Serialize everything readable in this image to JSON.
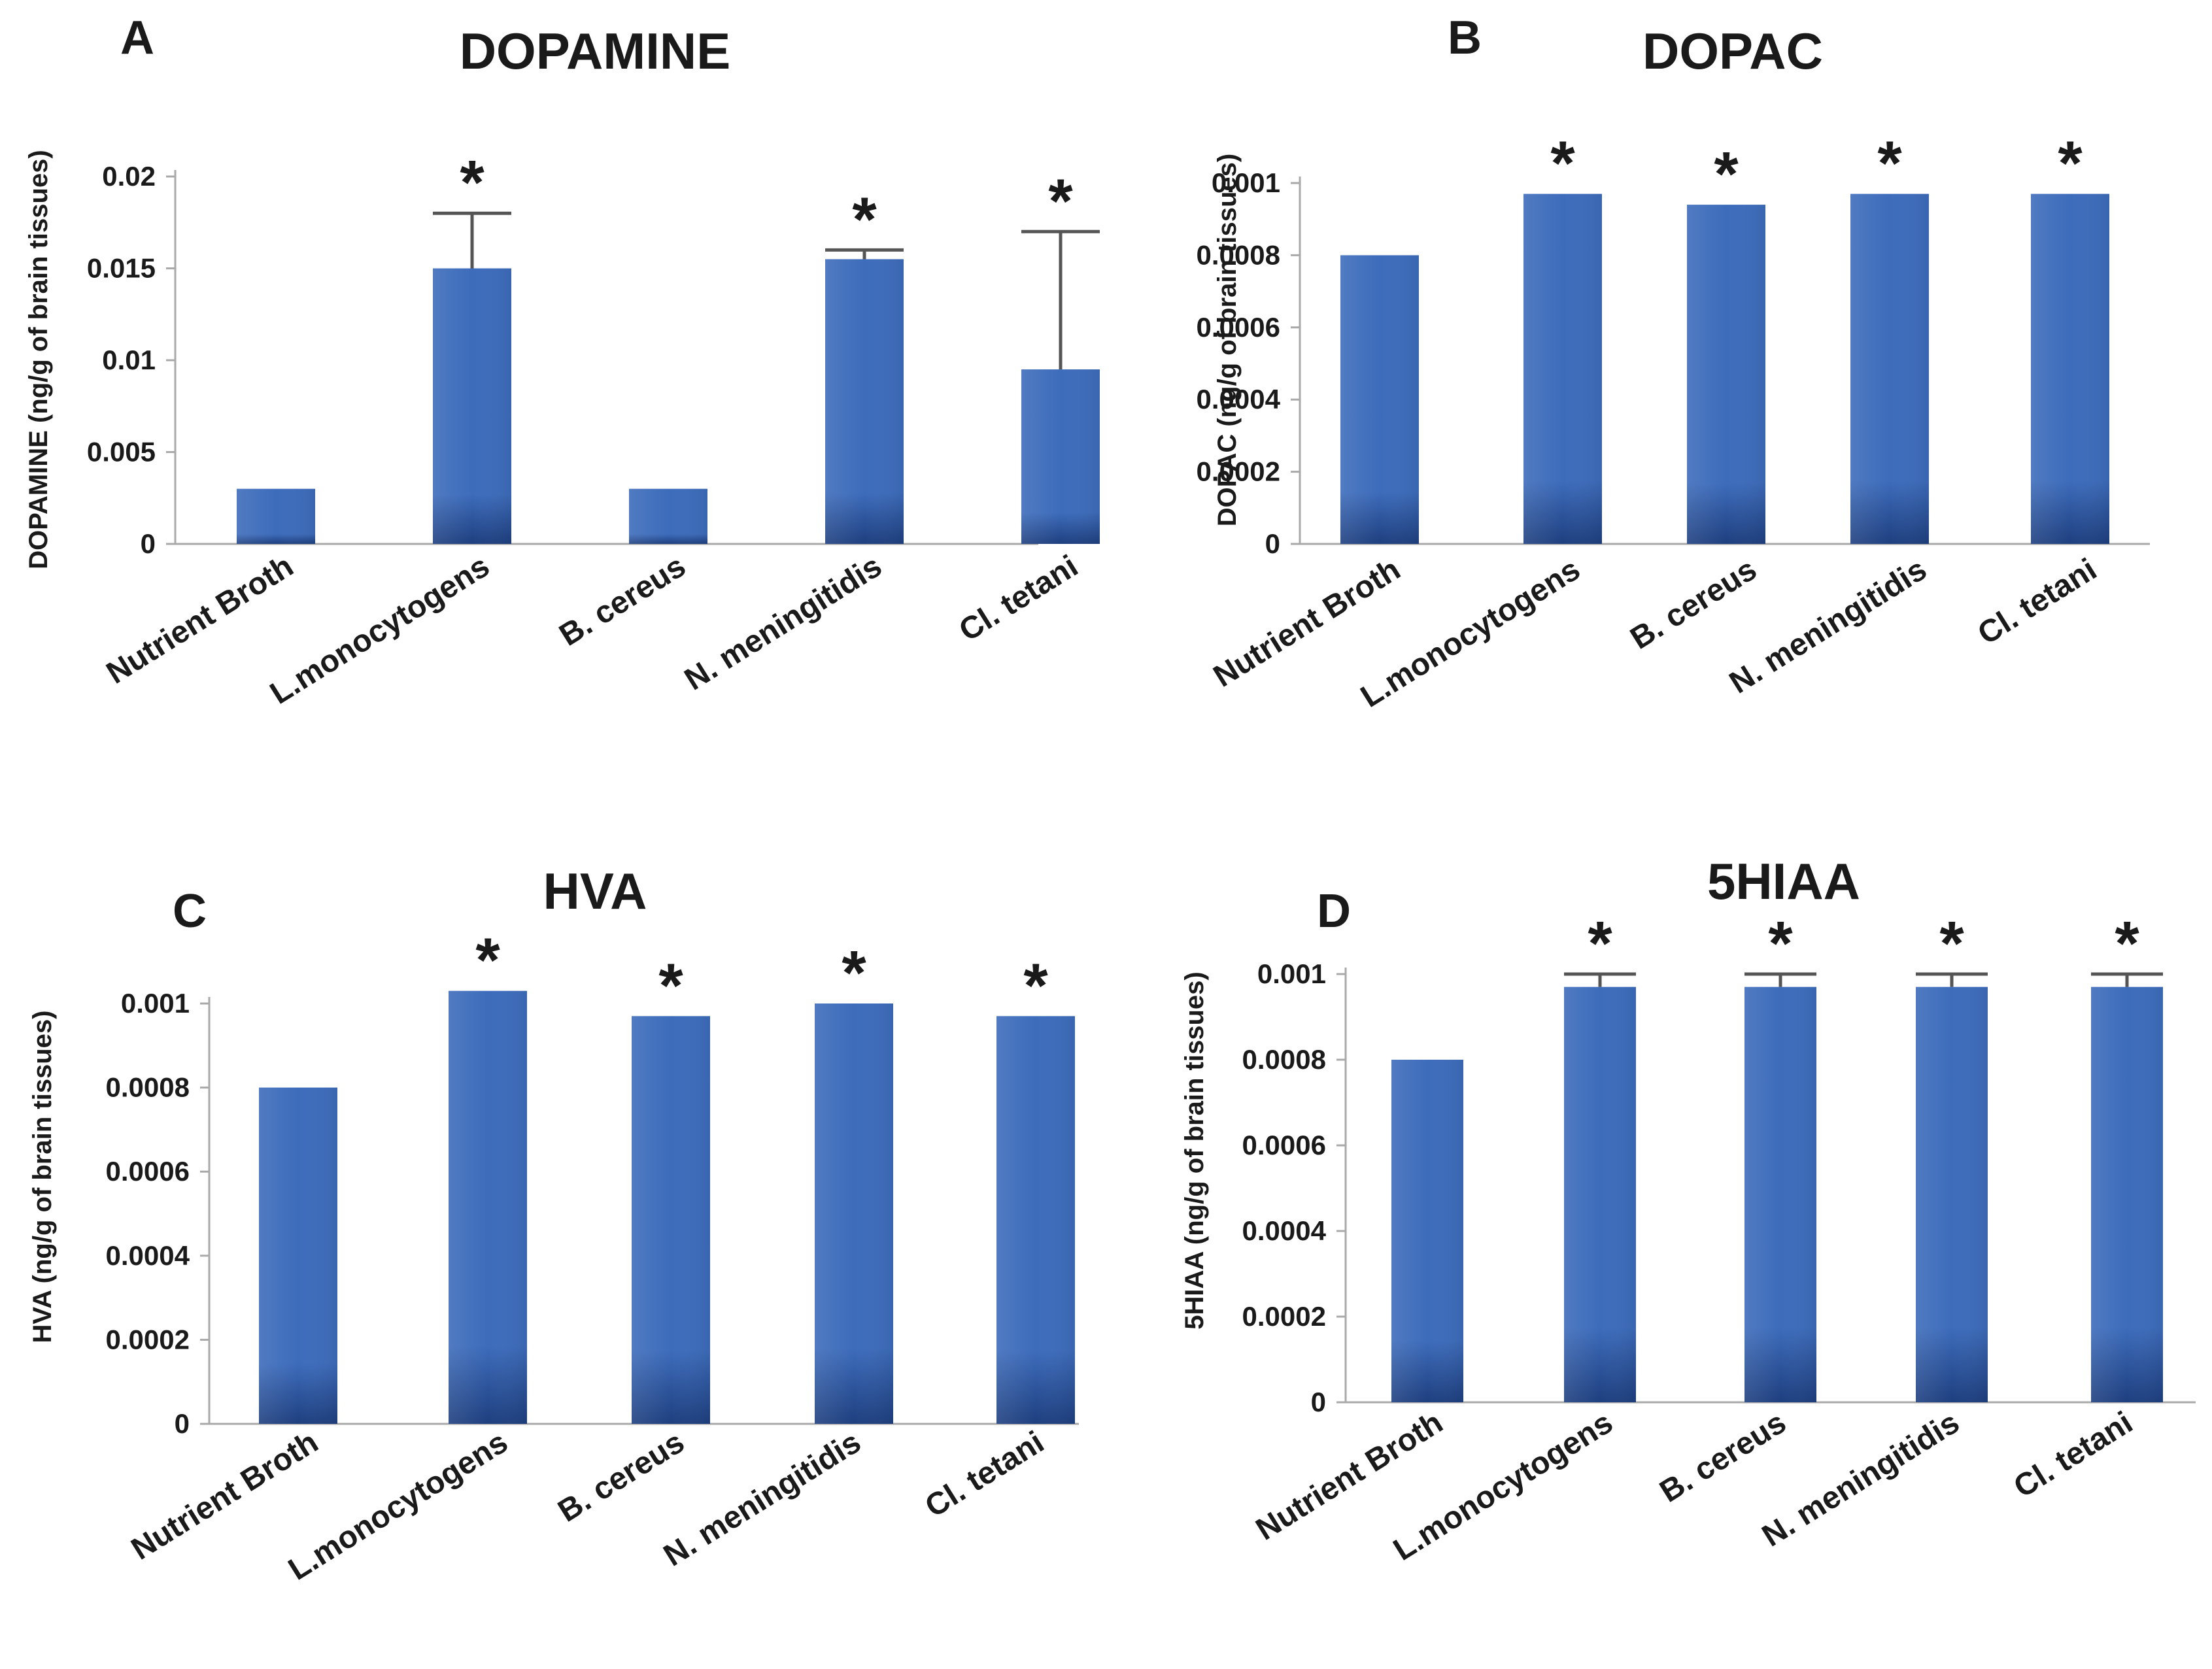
{
  "colors": {
    "bar_light": "#4a7fcf",
    "bar_main": "#3a69b8",
    "bar_dark": "#1d3f80"
  },
  "chart_data": [
    {
      "type": "bar",
      "panel": "A",
      "title": "DOPAMINE",
      "ylabel": "DOPAMINE (ng/g of brain tissues)",
      "xlabel": "",
      "ylim": [
        0,
        0.02
      ],
      "yticks": [
        0,
        0.005,
        0.01,
        0.015,
        0.02
      ],
      "ytick_labels": [
        "0",
        "0.005",
        "0.01",
        "0.015",
        "0.02"
      ],
      "categories": [
        "Nutrient Broth",
        "L.monocytogens",
        "B. cereus",
        "N. meningitidis",
        "Cl. tetani"
      ],
      "values": [
        0.003,
        0.015,
        0.003,
        0.0155,
        0.0095
      ],
      "errors": [
        0,
        0.003,
        0,
        0.0005,
        0.0075
      ],
      "significance": [
        "",
        "*",
        "",
        "*",
        "*"
      ]
    },
    {
      "type": "bar",
      "panel": "B",
      "title": "DOPAC",
      "ylabel": "DOPAC (ng/g of brain tissues)",
      "xlabel": "",
      "ylim": [
        0,
        0.001
      ],
      "yticks": [
        0,
        0.0002,
        0.0004,
        0.0006,
        0.0008,
        0.001
      ],
      "ytick_labels": [
        "0",
        "0.0002",
        "0.0004",
        "0.0006",
        "0.0008",
        "0.001"
      ],
      "categories": [
        "Nutrient Broth",
        "L.monocytogens",
        "B. cereus",
        "N. meningitidis",
        "Cl. tetani"
      ],
      "values": [
        0.0008,
        0.00097,
        0.00094,
        0.00097,
        0.00097
      ],
      "errors": [
        0,
        0,
        0,
        0,
        0
      ],
      "significance": [
        "",
        "*",
        "*",
        "*",
        "*"
      ]
    },
    {
      "type": "bar",
      "panel": "C",
      "title": "HVA",
      "ylabel": "HVA (ng/g of brain tissues)",
      "xlabel": "",
      "ylim": [
        0,
        0.001
      ],
      "yticks": [
        0,
        0.0002,
        0.0004,
        0.0006,
        0.0008,
        0.001
      ],
      "ytick_labels": [
        "0",
        "0.0002",
        "0.0004",
        "0.0006",
        "0.0008",
        "0.001"
      ],
      "categories": [
        "Nutrient Broth",
        "L.monocytogens",
        "B. cereus",
        "N. meningitidis",
        "Cl. tetani"
      ],
      "values": [
        0.0008,
        0.00103,
        0.00097,
        0.001,
        0.00097
      ],
      "errors": [
        0,
        0,
        0,
        0,
        0
      ],
      "significance": [
        "",
        "*",
        "*",
        "*",
        "*"
      ]
    },
    {
      "type": "bar",
      "panel": "D",
      "title": "5HIAA",
      "ylabel": "5HIAA (ng/g of brain tissues)",
      "xlabel": "",
      "ylim": [
        0,
        0.001
      ],
      "yticks": [
        0,
        0.0002,
        0.0004,
        0.0006,
        0.0008,
        0.001
      ],
      "ytick_labels": [
        "0",
        "0.0002",
        "0.0004",
        "0.0006",
        "0.0008",
        "0.001"
      ],
      "categories": [
        "Nutrient Broth",
        "L.monocytogens",
        "B. cereus",
        "N. meningitidis",
        "Cl. tetani"
      ],
      "values": [
        0.0008,
        0.00097,
        0.00097,
        0.00097,
        0.00097
      ],
      "errors": [
        0,
        3e-05,
        3e-05,
        3e-05,
        3e-05
      ],
      "significance": [
        "",
        "*",
        "*",
        "*",
        "*"
      ]
    }
  ]
}
